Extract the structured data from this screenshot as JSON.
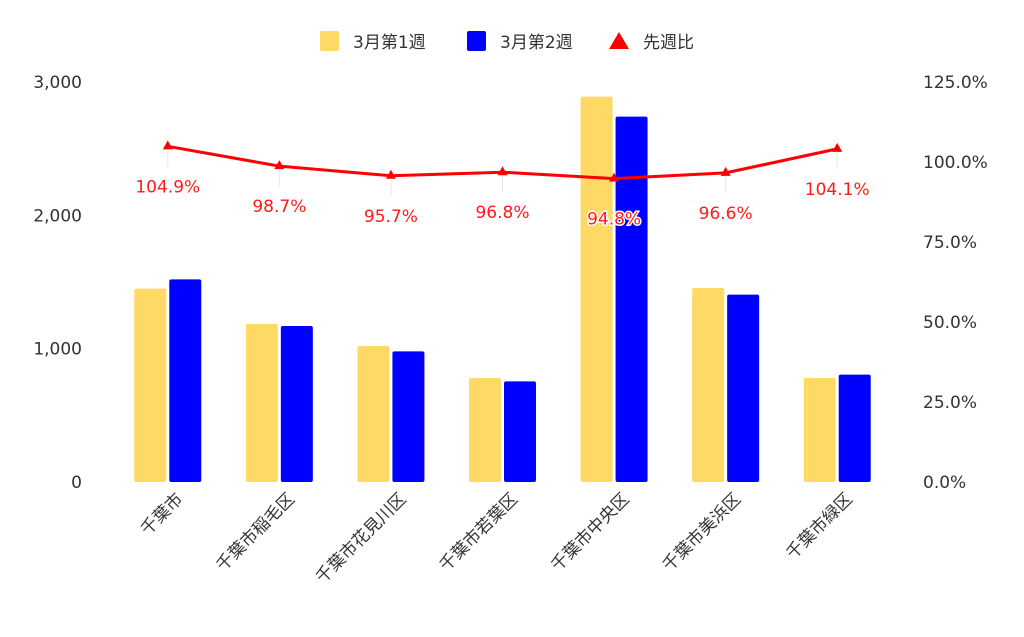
{
  "chart_data": {
    "type": "bar",
    "categories": [
      "千葉市",
      "千葉市稲毛区",
      "千葉市花見川区",
      "千葉市若葉区",
      "千葉市中央区",
      "千葉市美浜区",
      "千葉市緑区"
    ],
    "series": [
      {
        "name": "3月第1週",
        "kind": "bar",
        "color": "#FFD966",
        "axis": "left",
        "values": [
          1450,
          1185,
          1020,
          780,
          2890,
          1455,
          780
        ]
      },
      {
        "name": "3月第2週",
        "kind": "bar",
        "color": "#0000FF",
        "axis": "left",
        "values": [
          1520,
          1170,
          980,
          755,
          2740,
          1405,
          805
        ]
      },
      {
        "name": "先週比",
        "kind": "line",
        "marker": "triangle",
        "color": "#FF0000",
        "axis": "right",
        "values": [
          104.9,
          98.7,
          95.7,
          96.8,
          94.8,
          96.6,
          104.1
        ],
        "labels": [
          "104.9%",
          "98.7%",
          "95.7%",
          "96.8%",
          "94.8%",
          "96.6%",
          "104.1%"
        ]
      }
    ],
    "y_left": {
      "min": 0,
      "max": 3000,
      "ticks": [
        0,
        1000,
        2000,
        3000
      ],
      "tick_labels": [
        "0",
        "1,000",
        "2,000",
        "3,000"
      ]
    },
    "y_right": {
      "min": 0,
      "max": 125,
      "ticks": [
        0,
        25,
        50,
        75,
        100,
        125
      ],
      "tick_labels": [
        "0.0%",
        "25.0%",
        "50.0%",
        "75.0%",
        "100.0%",
        "125.0%"
      ]
    },
    "grid": false,
    "legend_position": "top-center",
    "title": "",
    "xlabel": "",
    "ylabel": ""
  }
}
